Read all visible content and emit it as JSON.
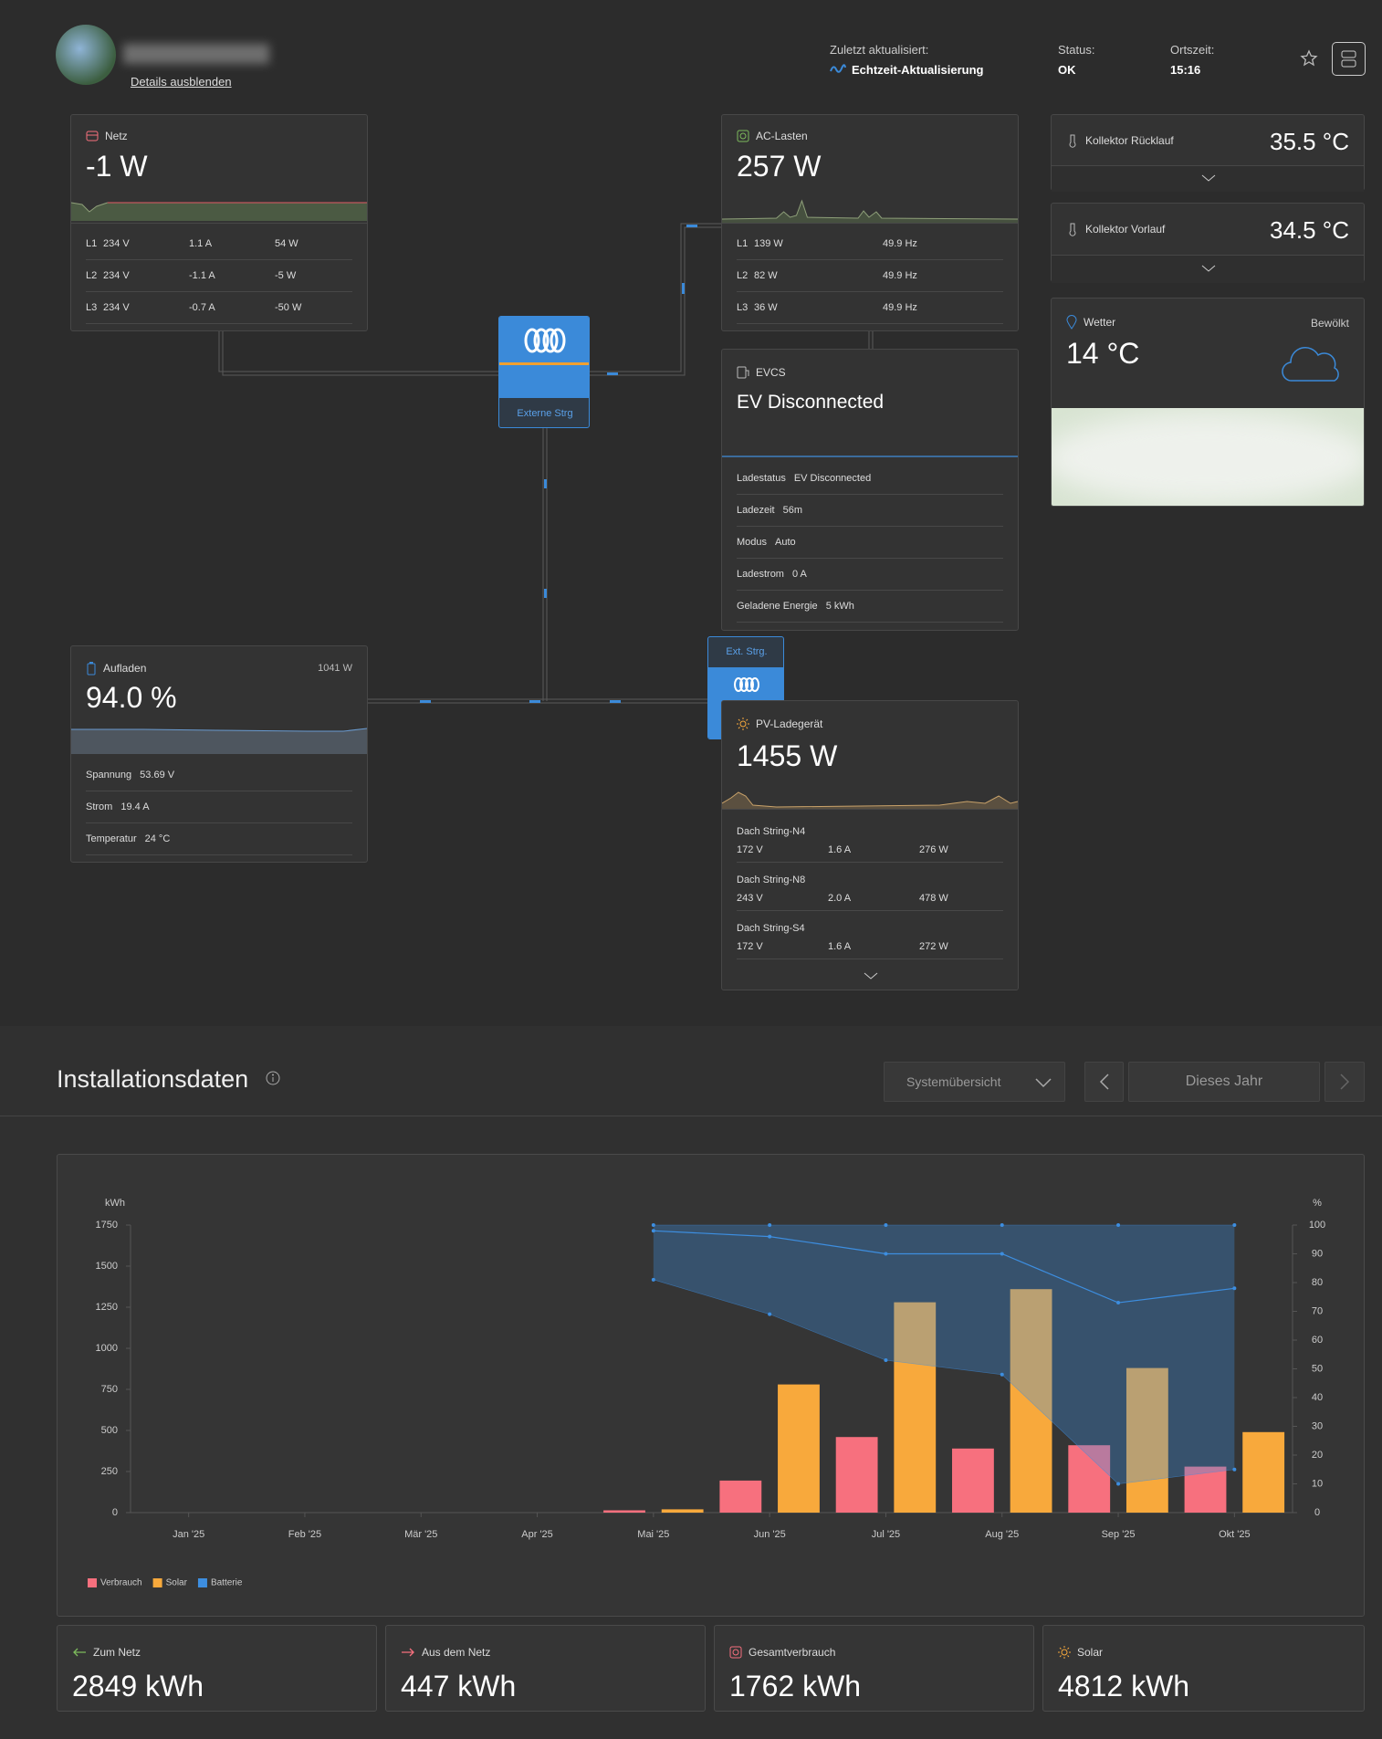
{
  "header": {
    "details_toggle": "Details ausblenden",
    "last_updated_label": "Zuletzt aktualisiert:",
    "last_updated_value": "Echtzeit-Aktualisierung",
    "status_label": "Status:",
    "status_value": "OK",
    "local_time_label": "Ortszeit:",
    "local_time_value": "15:16"
  },
  "grid_card": {
    "title": "Netz",
    "value": "-1 W",
    "phases": [
      [
        "L1",
        "234 V",
        "1.1 A",
        "54 W"
      ],
      [
        "L2",
        "234 V",
        "-1.1 A",
        "-5 W"
      ],
      [
        "L3",
        "234 V",
        "-0.7 A",
        "-50 W"
      ]
    ]
  },
  "ac_loads": {
    "title": "AC-Lasten",
    "value": "257 W",
    "phases": [
      [
        "L1",
        "139 W",
        "49.9 Hz"
      ],
      [
        "L2",
        "82 W",
        "49.9 Hz"
      ],
      [
        "L3",
        "36 W",
        "49.9 Hz"
      ]
    ]
  },
  "collector_return": {
    "title": "Kollektor Rücklauf",
    "value": "35.5 °C"
  },
  "collector_flow": {
    "title": "Kollektor Vorlauf",
    "value": "34.5 °C"
  },
  "weather": {
    "title": "Wetter",
    "condition": "Bewölkt",
    "value": "14 °C"
  },
  "inverter": {
    "label": "Externe Strg"
  },
  "evcs": {
    "title": "EVCS",
    "status": "EV Disconnected",
    "rows": [
      [
        "Ladestatus",
        "EV Disconnected"
      ],
      [
        "Ladezeit",
        "56m"
      ],
      [
        "Modus",
        "Auto"
      ],
      [
        "Ladestrom",
        "0 A"
      ],
      [
        "Geladene Energie",
        "5 kWh"
      ]
    ]
  },
  "battery": {
    "title": "Aufladen",
    "power": "1041 W",
    "value": "94.0 %",
    "rows": [
      [
        "Spannung",
        "53.69 V"
      ],
      [
        "Strom",
        "19.4 A"
      ],
      [
        "Temperatur",
        "24 °C"
      ]
    ]
  },
  "ext_control": {
    "label": "Ext. Strg."
  },
  "pv_charger": {
    "title": "PV-Ladegerät",
    "value": "1455 W",
    "strings": [
      {
        "name": "Dach String-N4",
        "values": [
          "172 V",
          "1.6 A",
          "276 W"
        ]
      },
      {
        "name": "Dach String-N8",
        "values": [
          "243 V",
          "2.0 A",
          "478 W"
        ]
      },
      {
        "name": "Dach String-S4",
        "values": [
          "172 V",
          "1.6 A",
          "272 W"
        ]
      }
    ]
  },
  "installation": {
    "title": "Installationsdaten",
    "view_select": "Systemübersicht",
    "period": "Dieses Jahr"
  },
  "chart_data": {
    "type": "bar",
    "categories": [
      "Jan '25",
      "Feb '25",
      "Mär '25",
      "Apr '25",
      "Mai '25",
      "Jun '25",
      "Jul '25",
      "Aug '25",
      "Sep '25",
      "Okt '25"
    ],
    "y_label": "kWh",
    "y2_label": "%",
    "ylim": [
      0,
      1750
    ],
    "yticks": [
      0,
      250,
      500,
      750,
      1000,
      1250,
      1500,
      1750
    ],
    "y2lim": [
      0,
      100
    ],
    "y2ticks": [
      0,
      10,
      20,
      30,
      40,
      50,
      60,
      70,
      80,
      90,
      100
    ],
    "series": [
      {
        "name": "Verbrauch",
        "color": "#f7707e",
        "values": [
          null,
          null,
          null,
          null,
          14,
          195,
          460,
          390,
          410,
          280
        ]
      },
      {
        "name": "Solar",
        "color": "#f8a93c",
        "values": [
          null,
          null,
          null,
          null,
          20,
          780,
          1280,
          1360,
          880,
          490
        ]
      },
      {
        "name": "Batterie",
        "type": "area",
        "axis": "y2",
        "color": "#3d8ee0",
        "values": [
          null,
          null,
          null,
          null,
          98,
          96,
          90,
          90,
          73,
          78
        ],
        "max": [
          null,
          null,
          null,
          null,
          100,
          100,
          100,
          100,
          100,
          100
        ],
        "min": [
          null,
          null,
          null,
          null,
          81,
          69,
          53,
          48,
          10,
          15
        ]
      }
    ],
    "legend": "bottom-left"
  },
  "totals": [
    {
      "label": "Zum Netz",
      "value": "2849 kWh"
    },
    {
      "label": "Aus dem Netz",
      "value": "447 kWh"
    },
    {
      "label": "Gesamtverbrauch",
      "value": "1762 kWh"
    },
    {
      "label": "Solar",
      "value": "4812 kWh"
    }
  ]
}
